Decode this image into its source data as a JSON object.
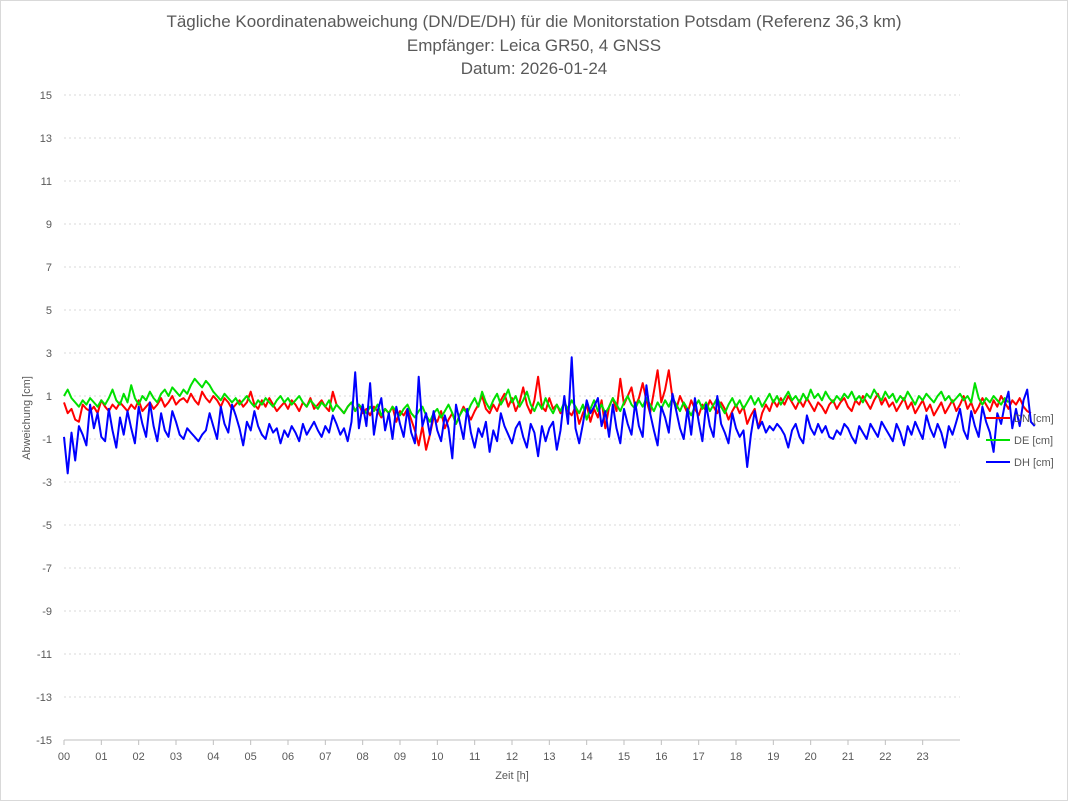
{
  "chart_data": {
    "type": "line",
    "title": "Tägliche Koordinatenabweichung (DN/DE/DH) für die Monitorstation Potsdam (Referenz 36,3 km)",
    "subtitle": "Empfänger: Leica GR50, 4 GNSS",
    "date_line": "Datum: 2026-01-24",
    "xlabel": "Zeit [h]",
    "ylabel": "Abweichung [cm]",
    "xlim": [
      0,
      24
    ],
    "ylim": [
      -15,
      15
    ],
    "grid": true,
    "legend_position": "right",
    "x_ticks": [
      {
        "value": 0,
        "label": "00"
      },
      {
        "value": 1,
        "label": "01"
      },
      {
        "value": 2,
        "label": "02"
      },
      {
        "value": 3,
        "label": "03"
      },
      {
        "value": 4,
        "label": "04"
      },
      {
        "value": 5,
        "label": "05"
      },
      {
        "value": 6,
        "label": "06"
      },
      {
        "value": 7,
        "label": "07"
      },
      {
        "value": 8,
        "label": "08"
      },
      {
        "value": 9,
        "label": "09"
      },
      {
        "value": 10,
        "label": "10"
      },
      {
        "value": 11,
        "label": "11"
      },
      {
        "value": 12,
        "label": "12"
      },
      {
        "value": 13,
        "label": "13"
      },
      {
        "value": 14,
        "label": "14"
      },
      {
        "value": 15,
        "label": "15"
      },
      {
        "value": 16,
        "label": "16"
      },
      {
        "value": 17,
        "label": "17"
      },
      {
        "value": 18,
        "label": "18"
      },
      {
        "value": 19,
        "label": "19"
      },
      {
        "value": 20,
        "label": "20"
      },
      {
        "value": 21,
        "label": "21"
      },
      {
        "value": 22,
        "label": "22"
      },
      {
        "value": 23,
        "label": "23"
      }
    ],
    "y_ticks": [
      {
        "value": 15,
        "label": "15"
      },
      {
        "value": 13,
        "label": "13"
      },
      {
        "value": 11,
        "label": "11"
      },
      {
        "value": 9,
        "label": "9"
      },
      {
        "value": 7,
        "label": "7"
      },
      {
        "value": 5,
        "label": "5"
      },
      {
        "value": 3,
        "label": "3"
      },
      {
        "value": 1,
        "label": "1"
      },
      {
        "value": -1,
        "label": "-1"
      },
      {
        "value": -3,
        "label": "-3"
      },
      {
        "value": -5,
        "label": "-5"
      },
      {
        "value": -7,
        "label": "-7"
      },
      {
        "value": -9,
        "label": "-9"
      },
      {
        "value": -11,
        "label": "-11"
      },
      {
        "value": -13,
        "label": "-13"
      },
      {
        "value": -15,
        "label": "-15"
      }
    ],
    "x_step_hours": 0.1,
    "series": [
      {
        "name": "DN [cm]",
        "color": "#ff0000",
        "values": [
          0.7,
          0.2,
          0.4,
          -0.1,
          -0.2,
          0.6,
          0.4,
          0.3,
          0.5,
          0.2,
          0.8,
          0.5,
          0.3,
          0.6,
          0.4,
          0.7,
          0.5,
          0.3,
          0.6,
          0.4,
          0.8,
          0.3,
          0.5,
          0.7,
          0.4,
          0.6,
          0.9,
          0.5,
          0.7,
          1.0,
          0.6,
          0.8,
          0.9,
          0.7,
          1.1,
          0.8,
          0.6,
          1.2,
          0.9,
          0.7,
          1.0,
          0.8,
          0.5,
          0.9,
          0.7,
          0.4,
          0.6,
          0.8,
          0.5,
          0.7,
          1.2,
          0.6,
          0.4,
          0.8,
          0.5,
          0.9,
          0.6,
          0.3,
          0.5,
          0.7,
          0.4,
          0.8,
          0.6,
          0.3,
          0.7,
          0.5,
          0.9,
          0.4,
          0.6,
          0.8,
          0.5,
          0.3,
          1.2,
          0.6,
          0.4,
          0.2,
          0.5,
          0.7,
          0.3,
          0.6,
          0.2,
          0.4,
          0.1,
          0.5,
          0.3,
          0.0,
          0.4,
          0.2,
          0.5,
          -0.2,
          0.3,
          0.1,
          0.4,
          -0.1,
          -0.6,
          -1.3,
          -0.4,
          -1.5,
          -0.8,
          0.0,
          -0.2,
          0.3,
          -0.5,
          -0.1,
          0.2,
          -0.3,
          0.1,
          0.5,
          0.2,
          -0.1,
          0.3,
          0.6,
          1.0,
          0.4,
          0.2,
          0.6,
          0.3,
          0.8,
          1.1,
          0.5,
          0.9,
          0.3,
          0.7,
          1.4,
          0.6,
          0.2,
          0.8,
          1.9,
          0.5,
          0.3,
          0.9,
          0.4,
          0.6,
          0.2,
          0.7,
          0.3,
          0.1,
          0.5,
          -0.3,
          0.2,
          0.6,
          -0.2,
          0.4,
          0.0,
          0.8,
          -0.5,
          0.5,
          0.9,
          0.3,
          1.8,
          0.6,
          1.0,
          1.4,
          0.5,
          0.9,
          1.6,
          0.8,
          0.2,
          1.2,
          2.2,
          0.7,
          1.3,
          2.2,
          0.9,
          0.4,
          1.0,
          0.6,
          0.2,
          0.8,
          0.4,
          0.1,
          0.6,
          0.3,
          0.8,
          0.5,
          0.2,
          0.7,
          0.4,
          -0.1,
          0.3,
          0.6,
          0.2,
          0.5,
          -0.3,
          0.1,
          0.4,
          -0.5,
          0.2,
          0.6,
          0.3,
          0.8,
          0.5,
          0.9,
          0.6,
          1.0,
          0.7,
          0.4,
          0.8,
          0.5,
          0.9,
          0.6,
          0.3,
          0.7,
          0.5,
          0.2,
          0.6,
          0.8,
          0.4,
          0.7,
          0.9,
          0.5,
          0.3,
          0.8,
          0.6,
          1.0,
          0.7,
          0.4,
          0.8,
          1.1,
          0.6,
          0.9,
          0.5,
          0.7,
          0.3,
          0.6,
          0.9,
          0.4,
          0.7,
          0.2,
          0.5,
          0.8,
          0.3,
          0.6,
          0.1,
          0.4,
          0.7,
          0.2,
          0.5,
          0.8,
          0.3,
          0.6,
          1.0,
          0.4,
          0.7,
          0.2,
          0.5,
          0.9,
          0.6,
          0.3,
          0.8,
          0.5,
          1.0,
          0.7,
          0.4,
          0.8,
          0.6,
          0.9,
          0.5,
          0.3,
          0.2
        ]
      },
      {
        "name": "DE [cm]",
        "color": "#00e000",
        "values": [
          1.0,
          1.3,
          0.9,
          0.7,
          0.5,
          0.8,
          0.6,
          0.9,
          0.7,
          0.5,
          0.8,
          0.6,
          0.9,
          1.3,
          0.8,
          0.6,
          1.1,
          0.7,
          1.5,
          0.9,
          0.6,
          1.0,
          0.8,
          1.2,
          0.9,
          0.7,
          1.1,
          1.3,
          1.0,
          1.4,
          1.2,
          1.0,
          1.3,
          1.1,
          1.5,
          1.8,
          1.6,
          1.4,
          1.7,
          1.5,
          1.2,
          1.0,
          0.8,
          1.1,
          0.9,
          0.7,
          0.9,
          0.6,
          0.8,
          1.0,
          0.7,
          0.5,
          0.8,
          0.6,
          0.9,
          0.7,
          0.5,
          0.8,
          1.0,
          0.7,
          0.9,
          0.6,
          0.8,
          1.0,
          0.7,
          0.5,
          0.8,
          0.6,
          0.4,
          0.7,
          0.5,
          0.8,
          0.3,
          0.6,
          0.4,
          0.2,
          0.5,
          0.7,
          0.3,
          0.6,
          0.4,
          0.2,
          0.5,
          0.3,
          0.6,
          0.1,
          0.4,
          0.2,
          0.5,
          0.3,
          0.1,
          0.4,
          0.6,
          0.2,
          0.0,
          0.3,
          0.5,
          0.1,
          -0.2,
          0.2,
          0.4,
          0.0,
          0.3,
          0.6,
          0.2,
          -0.3,
          0.1,
          0.4,
          0.2,
          0.6,
          0.9,
          0.5,
          1.2,
          0.7,
          0.4,
          0.8,
          1.1,
          0.6,
          0.9,
          1.3,
          0.7,
          1.0,
          0.5,
          0.8,
          1.2,
          0.6,
          0.3,
          0.7,
          0.4,
          0.9,
          0.5,
          0.2,
          0.6,
          0.3,
          0.7,
          0.4,
          0.8,
          0.5,
          0.2,
          0.6,
          -0.1,
          0.4,
          0.8,
          0.3,
          0.6,
          0.2,
          0.5,
          0.9,
          0.6,
          0.3,
          0.7,
          1.0,
          0.6,
          0.4,
          0.8,
          0.5,
          0.9,
          0.6,
          0.3,
          0.7,
          0.4,
          0.8,
          0.5,
          0.9,
          0.6,
          0.3,
          0.7,
          0.4,
          0.1,
          0.5,
          0.8,
          0.4,
          0.7,
          0.3,
          0.6,
          0.9,
          0.5,
          0.2,
          0.6,
          0.9,
          0.5,
          0.8,
          0.4,
          0.7,
          1.0,
          0.6,
          0.9,
          0.5,
          0.8,
          1.1,
          0.7,
          1.0,
          0.6,
          0.9,
          1.2,
          0.8,
          1.0,
          0.7,
          1.1,
          0.8,
          1.3,
          0.9,
          1.1,
          0.8,
          1.2,
          0.9,
          0.7,
          1.0,
          0.8,
          1.1,
          0.9,
          1.2,
          0.8,
          1.0,
          0.7,
          1.1,
          0.9,
          1.3,
          1.0,
          0.8,
          1.2,
          0.9,
          1.1,
          0.7,
          1.0,
          0.8,
          1.2,
          0.9,
          0.6,
          1.0,
          0.8,
          1.1,
          0.9,
          0.7,
          1.0,
          1.2,
          0.8,
          1.0,
          0.7,
          0.9,
          1.1,
          0.8,
          1.0,
          0.7,
          1.6,
          0.9,
          0.6,
          0.9,
          0.7,
          1.0,
          0.8,
          0.6,
          0.9,
          0.7
        ]
      },
      {
        "name": "DH [cm]",
        "color": "#0000ff",
        "values": [
          -0.9,
          -2.6,
          -0.7,
          -2.0,
          -0.4,
          -0.8,
          -1.3,
          0.6,
          -0.5,
          0.2,
          -0.9,
          -1.1,
          0.4,
          -0.6,
          -1.4,
          0.0,
          -0.8,
          0.3,
          -0.5,
          -1.2,
          0.5,
          -0.3,
          -0.9,
          0.7,
          -0.4,
          -1.1,
          0.2,
          -0.6,
          -0.9,
          0.3,
          -0.2,
          -0.8,
          -1.0,
          -0.5,
          -0.7,
          -0.9,
          -1.1,
          -0.8,
          -0.6,
          0.2,
          -0.4,
          -1.0,
          0.5,
          -0.3,
          -0.7,
          0.6,
          0.1,
          -0.5,
          -1.3,
          -0.2,
          -0.6,
          0.3,
          -0.4,
          -0.8,
          -1.0,
          -0.3,
          -0.7,
          -0.5,
          -1.2,
          -0.6,
          -0.9,
          -0.4,
          -0.7,
          -1.1,
          -0.3,
          -0.8,
          -0.5,
          -0.2,
          -0.6,
          -0.9,
          -0.4,
          -0.7,
          0.1,
          -0.3,
          -0.8,
          -0.5,
          -1.1,
          -0.2,
          2.1,
          -0.5,
          0.6,
          -0.4,
          1.6,
          -0.8,
          0.3,
          0.9,
          -0.6,
          0.2,
          -1.0,
          0.5,
          -0.3,
          -0.9,
          0.4,
          -0.7,
          -1.2,
          1.9,
          -0.4,
          0.2,
          -0.8,
          0.3,
          -0.6,
          -1.1,
          0.1,
          -0.5,
          -1.9,
          0.6,
          -0.2,
          -1.0,
          0.4,
          -0.7,
          -1.4,
          -0.5,
          -0.9,
          -0.2,
          -1.6,
          -0.6,
          -1.1,
          0.2,
          -0.4,
          -0.8,
          -1.2,
          -0.5,
          -0.2,
          -0.9,
          -1.4,
          -0.3,
          -0.7,
          -1.8,
          -0.4,
          -1.1,
          -0.5,
          -0.2,
          -1.5,
          -0.6,
          1.0,
          -0.3,
          2.8,
          -0.5,
          -1.2,
          -0.3,
          0.8,
          0.2,
          0.5,
          0.9,
          -0.4,
          0.3,
          -0.9,
          0.6,
          -0.5,
          -1.2,
          0.4,
          -0.3,
          -0.8,
          0.7,
          -0.4,
          -0.9,
          1.5,
          0.2,
          -0.6,
          -1.3,
          0.5,
          0.0,
          -0.7,
          1.1,
          0.3,
          -0.5,
          -1.0,
          0.4,
          -0.8,
          0.9,
          -0.2,
          -1.1,
          0.6,
          -0.4,
          -0.9,
          1.0,
          -0.3,
          -0.7,
          -1.2,
          0.2,
          -0.5,
          -0.9,
          -0.6,
          -2.3,
          -0.8,
          0.3,
          -0.5,
          -0.2,
          -0.7,
          -0.4,
          -0.6,
          -0.3,
          -0.5,
          -0.8,
          -1.4,
          -0.6,
          -0.3,
          -0.9,
          -1.2,
          0.1,
          -0.5,
          -0.8,
          -0.3,
          -0.7,
          -0.4,
          -0.9,
          -1.0,
          -0.6,
          -0.8,
          -0.3,
          -0.5,
          -0.9,
          -1.2,
          -0.4,
          -0.7,
          -1.0,
          -0.3,
          -0.6,
          -0.9,
          -0.2,
          -0.5,
          -0.8,
          -1.1,
          -0.3,
          -0.7,
          -1.3,
          -0.4,
          -0.8,
          -0.2,
          -0.6,
          -1.0,
          0.1,
          -0.5,
          -0.9,
          -0.3,
          -0.7,
          -1.4,
          -0.4,
          -0.8,
          -0.2,
          0.4,
          -0.6,
          -1.0,
          0.3,
          -0.4,
          -0.9,
          0.5,
          -0.2,
          -0.7,
          -1.6,
          0.2,
          -0.3,
          0.6,
          1.2,
          -0.5,
          0.4,
          -0.4,
          0.8,
          1.3,
          -0.2,
          -0.4
        ]
      }
    ]
  }
}
